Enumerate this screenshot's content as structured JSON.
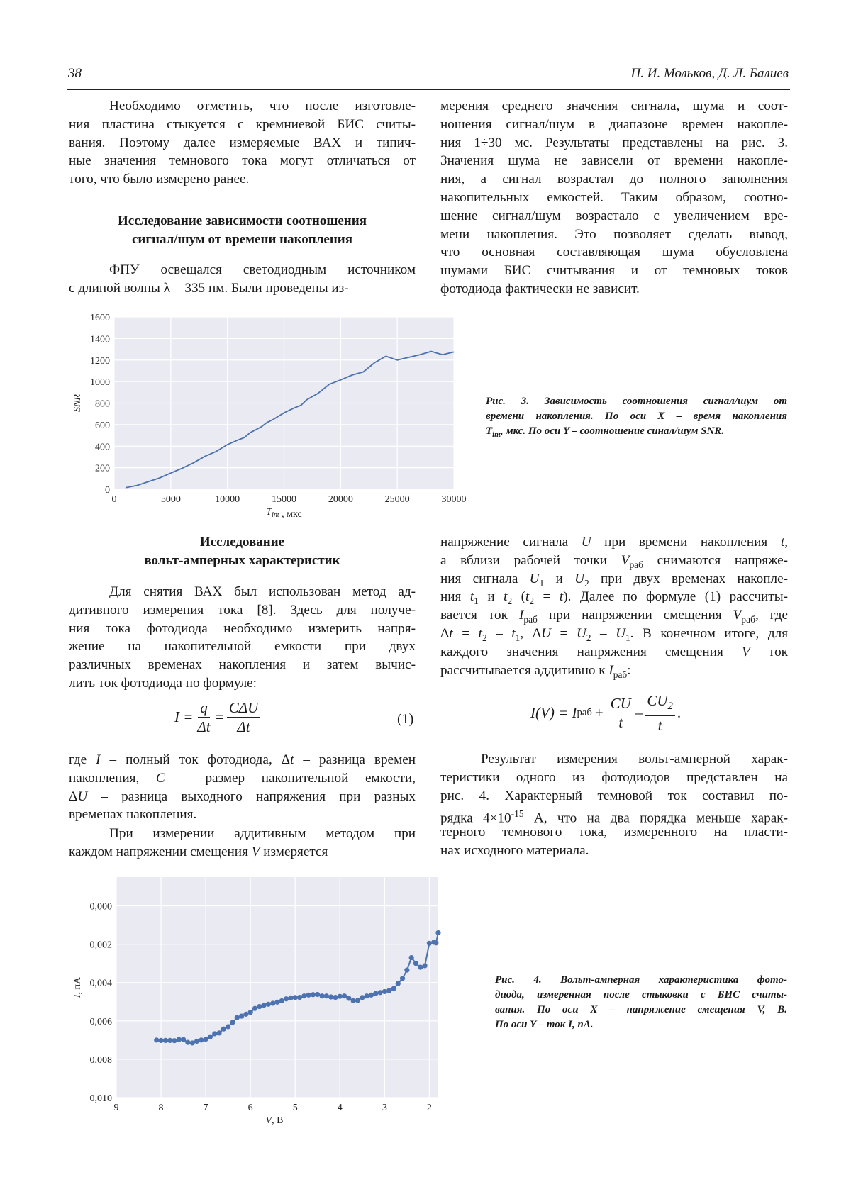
{
  "header": {
    "page_number": "38",
    "authors": "П. И. Мольков, Д. Л. Балиев"
  },
  "left1": {
    "para1": [
      "Необходимо отметить, что после изготовле-",
      "ния пластина стыкуется с кремниевой БИС считы-",
      "вания. Поэтому далее измеряемые ВАХ и типич-",
      "ные значения темнового тока могут отличаться от",
      "того, что было измерено ранее."
    ],
    "heading": [
      "Исследование зависимости соотношения",
      "сигнал/шум от времени накопления"
    ],
    "para2": [
      "ФПУ освещался светодиодным источником",
      "с длиной волны λ = 335 нм. Были проведены из-"
    ]
  },
  "right1": {
    "para": [
      "мерения среднего значения сигнала, шума и соот-",
      "ношения сигнал/шум в диапазоне времен накопле-",
      "ния 1÷30 мс. Результаты представлены на рис. 3.",
      "Значения шума не зависели от времени накопле-",
      "ния, а сигнал возрастал до полного заполнения",
      "накопительных емкостей. Таким образом, соотно-",
      "шение сигнал/шум возрастало с увеличением вре-",
      "мени накопления. Это позволяет сделать вывод,",
      "что основная составляющая шума обусловлена",
      "шумами БИС считывания и от темновых токов",
      "фотодиода фактически не зависит."
    ]
  },
  "fig3_caption": [
    "Рис. 3. Зависимость соотношения сигнал/шум от",
    "времени накопления. По оси X – время накопления",
    "T_{int}, мкс. По оси Y – соотношение синал/шум SNR."
  ],
  "left2": {
    "heading": [
      "Исследование",
      "вольт-амперных характеристик"
    ],
    "para1": [
      "Для снятия ВАХ был использован метод ад-",
      "дитивного измерения тока [8]. Здесь для получе-",
      "ния тока фотодиода необходимо измерить напря-",
      "жение на накопительной емкости при двух",
      "различных временах накопления и затем вычис-",
      "лить ток фотодиода по формуле:"
    ],
    "formula1": {
      "lhs": "I =",
      "frac1_num": "q",
      "frac1_den": "Δt",
      "eq": "=",
      "frac2_num": "CΔU",
      "frac2_den": "Δt",
      "number": "(1)"
    },
    "para2": [
      "где *I* – полный ток фотодиода, Δ*t* – разница времен",
      "накопления, *C* – размер накопительной емкости,",
      "Δ*U* – разница выходного напряжения при разных",
      "временах накопления."
    ],
    "para3": [
      "При измерении аддитивным методом при",
      "каждом напряжении смещения *V* измеряется"
    ]
  },
  "right2": {
    "para1": [
      "напряжение сигнала *U* при времени накопления *t*,",
      "а вблизи рабочей точки *V*_{раб} снимаются напряже-",
      "ния сигнала *U*_{1} и *U*_{2} при двух временах накопле-",
      "ния *t*_{1} и *t*_{2} (*t*_{2} = *t*). Далее по формуле (1) рассчиты-",
      "вается ток *I*_{раб} при напряжении смещения *V*_{раб}, где",
      "Δ*t* = *t*_{2} – *t*_{1},  Δ*U* = *U*_{2} – *U*_{1}. В конечном итоге, для",
      "каждого значения напряжения смещения *V* ток",
      "рассчитывается аддитивно к *I*_{раб}:"
    ],
    "formula2": {
      "lhs": "I(V) = I",
      "lhs_sub": "раб",
      "plus": "+",
      "frac1_num": "CU",
      "frac1_den": "t",
      "minus": "–",
      "frac2_num": "CU",
      "frac2_num_sub": "2",
      "frac2_den": "t",
      "end": "."
    },
    "para2": [
      "Результат измерения вольт-амперной харак-",
      "теристики одного из фотодиодов представлен на",
      "рис. 4. Характерный темновой ток составил по-",
      "рядка 4×10^{-15} А, что на два порядка меньше харак-",
      "терного темнового тока, измеренного на пласти-",
      "нах исходного материала."
    ]
  },
  "fig4_caption": [
    "Рис. 4. Вольт-амперная характеристика фото-",
    "диода, измеренная после стыковки с БИС считы-",
    "вания. По оси X – напряжение смещения V, В.",
    "По оси Y – ток I, пА."
  ],
  "chart_data": [
    {
      "type": "line",
      "xlabel": "*T*_{int} , мкс",
      "ylabel": "*SNR*",
      "xlim": [
        0,
        30000
      ],
      "ylim": [
        0,
        1600
      ],
      "x_ticks": [
        "0",
        "5000",
        "10000",
        "15000",
        "20000",
        "25000",
        "30000"
      ],
      "y_ticks": [
        "0",
        "200",
        "400",
        "600",
        "800",
        "1000",
        "1200",
        "1400",
        "1600"
      ],
      "grid": true,
      "colors": {
        "background": "#eaeaf2",
        "line": "#4c72b0",
        "grid": "#ffffff"
      },
      "x": [
        1000,
        2000,
        3000,
        4000,
        5000,
        6000,
        7000,
        8000,
        9000,
        10000,
        11000,
        11500,
        12000,
        13000,
        13500,
        14000,
        15000,
        16000,
        16500,
        17000,
        18000,
        19000,
        20000,
        21000,
        22000,
        23000,
        24000,
        25000,
        26000,
        27000,
        28000,
        29000,
        30000
      ],
      "y": [
        15,
        35,
        70,
        105,
        150,
        195,
        245,
        305,
        350,
        415,
        460,
        480,
        525,
        580,
        620,
        645,
        710,
        760,
        780,
        830,
        890,
        975,
        1015,
        1060,
        1090,
        1175,
        1235,
        1200,
        1225,
        1250,
        1280,
        1250,
        1275
      ]
    },
    {
      "type": "line",
      "markers": true,
      "xlabel": "*V*, В",
      "ylabel": "*I*, пА",
      "xlim": [
        9,
        1.8
      ],
      "ylim": [
        -0.0015,
        0.01
      ],
      "y_inverted": true,
      "x_reversed": true,
      "x_ticks": [
        "9",
        "8",
        "7",
        "6",
        "5",
        "4",
        "3",
        "2"
      ],
      "y_ticks": [
        "0,000",
        "0,002",
        "0,004",
        "0,006",
        "0,008",
        "0,010"
      ],
      "grid": true,
      "colors": {
        "background": "#eaeaf2",
        "line": "#4c72b0",
        "grid": "#ffffff"
      },
      "x": [
        8.1,
        8.0,
        7.9,
        7.8,
        7.7,
        7.6,
        7.5,
        7.4,
        7.3,
        7.2,
        7.1,
        7.0,
        6.9,
        6.8,
        6.7,
        6.6,
        6.5,
        6.4,
        6.3,
        6.2,
        6.1,
        6.0,
        5.9,
        5.8,
        5.7,
        5.6,
        5.5,
        5.4,
        5.3,
        5.2,
        5.1,
        5.0,
        4.9,
        4.8,
        4.7,
        4.6,
        4.5,
        4.4,
        4.3,
        4.2,
        4.1,
        4.0,
        3.9,
        3.8,
        3.7,
        3.6,
        3.5,
        3.4,
        3.3,
        3.2,
        3.1,
        3.0,
        2.9,
        2.8,
        2.7,
        2.6,
        2.5,
        2.4,
        2.3,
        2.2,
        2.1,
        2.0,
        1.9,
        1.85,
        1.8
      ],
      "y": [
        0.007,
        0.00702,
        0.00702,
        0.00702,
        0.00703,
        0.00697,
        0.00697,
        0.00712,
        0.00715,
        0.00706,
        0.007,
        0.00695,
        0.00683,
        0.00667,
        0.00663,
        0.00642,
        0.0063,
        0.00608,
        0.00583,
        0.00575,
        0.00565,
        0.00555,
        0.00535,
        0.00525,
        0.00518,
        0.00513,
        0.00508,
        0.00502,
        0.00495,
        0.00485,
        0.0048,
        0.00478,
        0.00477,
        0.0047,
        0.00465,
        0.00463,
        0.00462,
        0.0047,
        0.0047,
        0.00475,
        0.00477,
        0.00472,
        0.0047,
        0.00482,
        0.00495,
        0.00493,
        0.00478,
        0.0047,
        0.00465,
        0.00457,
        0.00452,
        0.00447,
        0.00442,
        0.00432,
        0.00405,
        0.00378,
        0.00335,
        0.0027,
        0.003,
        0.0032,
        0.00312,
        0.00195,
        0.0019,
        0.00193,
        0.0014
      ]
    }
  ]
}
